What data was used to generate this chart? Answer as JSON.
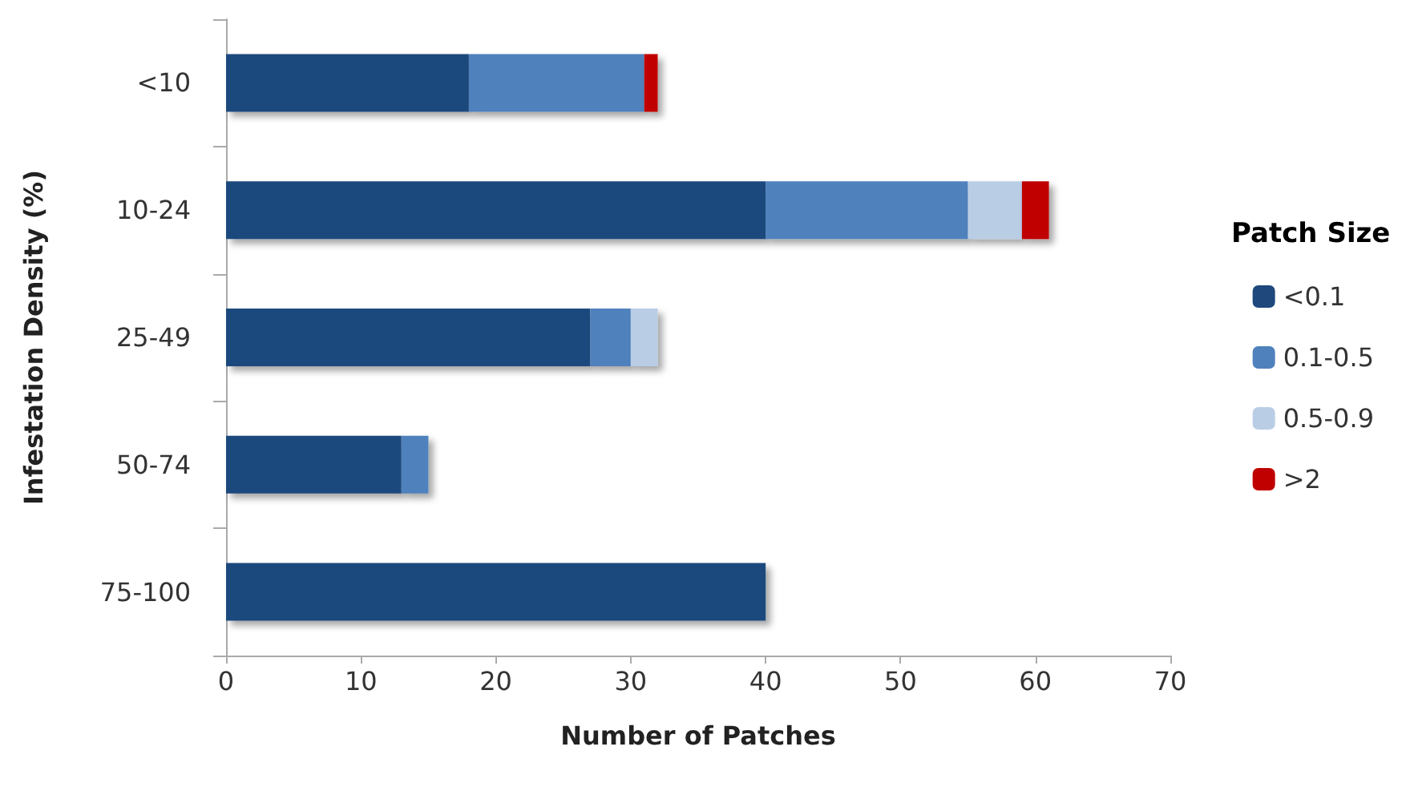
{
  "chart_data": {
    "type": "bar",
    "orientation": "horizontal",
    "stacked": true,
    "xlabel": "Number of Patches",
    "ylabel": "Infestation Density (%)",
    "legend_title": "Patch Size",
    "categories": [
      "<10",
      "10-24",
      "25-49",
      "50-74",
      "75-100"
    ],
    "series": [
      {
        "name": "<0.1",
        "color": "#1f497d",
        "values": [
          18,
          40,
          27,
          13,
          40
        ]
      },
      {
        "name": "0.1-0.5",
        "color": "#4f81bd",
        "values": [
          13,
          15,
          3,
          2,
          null
        ]
      },
      {
        "name": "0.5-0.9",
        "color": "#b9cde5",
        "values": [
          null,
          4,
          2,
          null,
          null
        ]
      },
      {
        "name": ">2",
        "color": "#c00000",
        "values": [
          1,
          2,
          null,
          null,
          null
        ]
      }
    ],
    "xlim": [
      0,
      70
    ],
    "xticks": [
      0,
      10,
      20,
      30,
      40,
      50,
      60,
      70
    ],
    "grid": false,
    "legend": "right"
  }
}
